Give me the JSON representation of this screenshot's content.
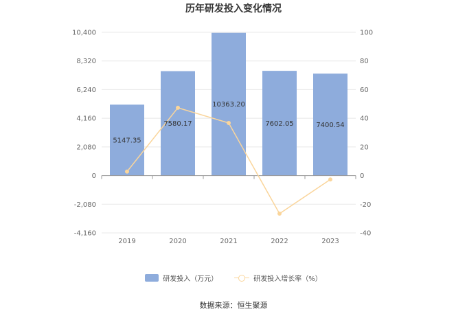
{
  "chart_data": {
    "type": "bar",
    "title": "历年研发投入变化情况",
    "categories": [
      "2019",
      "2020",
      "2021",
      "2022",
      "2023"
    ],
    "series": [
      {
        "name": "研发投入（万元）",
        "type": "bar",
        "axis": "left",
        "values": [
          5147.35,
          7580.17,
          10363.2,
          7602.05,
          7400.54
        ],
        "value_labels": [
          "5147.35",
          "7580.17",
          "10363.20",
          "7602.05",
          "7400.54"
        ],
        "color": "#8eacdc"
      },
      {
        "name": "研发投入增长率（%）",
        "type": "line",
        "axis": "right",
        "values": [
          2.8,
          47.3,
          36.7,
          -26.6,
          -2.7
        ],
        "color": "#fad59b"
      }
    ],
    "y_left": {
      "lim": [
        -4160,
        10400
      ],
      "ticks": [
        -4160,
        -2080,
        0,
        2080,
        4160,
        6240,
        8320,
        10400
      ],
      "tick_labels": [
        "-4,160",
        "-2,080",
        "0",
        "2,080",
        "4,160",
        "6,240",
        "8,320",
        "10,400"
      ]
    },
    "y_right": {
      "lim": [
        -40,
        100
      ],
      "ticks": [
        -40,
        -20,
        0,
        20,
        40,
        60,
        80,
        100
      ],
      "tick_labels": [
        "-40",
        "-20",
        "0",
        "20",
        "40",
        "60",
        "80",
        "100"
      ]
    },
    "grid": true,
    "legend_position": "bottom"
  },
  "legend": {
    "bar_label": "研发投入（万元）",
    "line_label": "研发投入增长率（%）"
  },
  "source": "数据来源：恒生聚源"
}
